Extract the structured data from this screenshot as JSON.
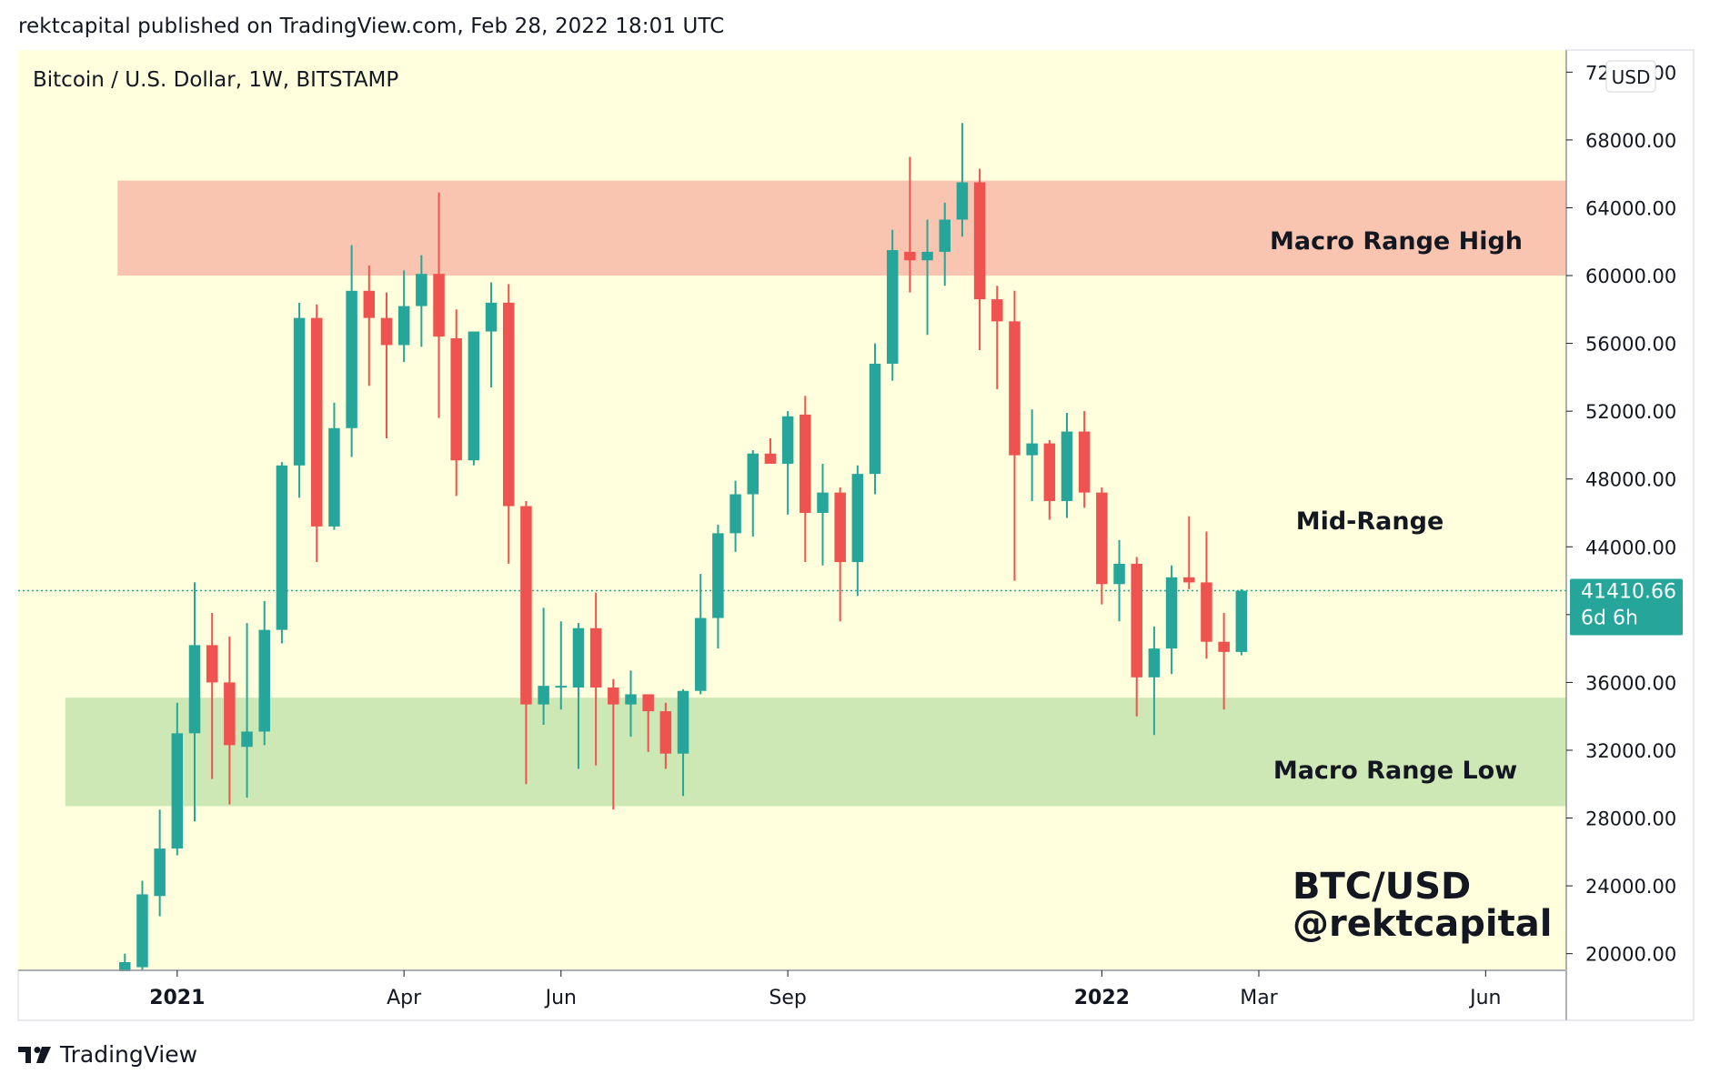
{
  "header": {
    "published_line": "rektcapital published on TradingView.com, Feb 28, 2022 18:01 UTC"
  },
  "footer": {
    "brand": "TradingView"
  },
  "colors": {
    "background": "#ffffdd",
    "bull": "#26a69a",
    "bear": "#ef5350",
    "zone_high": "#fac5b0",
    "zone_low": "#cde8b5",
    "price_label": "#26a69a"
  },
  "chart_data": {
    "type": "candlestick",
    "title": "Bitcoin / U.S. Dollar, 1W, BITSTAMP",
    "currency_badge": "USD",
    "ylim": [
      19500,
      72500
    ],
    "y_ticks": [
      {
        "value": 20000,
        "label": "20000.00"
      },
      {
        "value": 24000,
        "label": "24000.00"
      },
      {
        "value": 28000,
        "label": "28000.00"
      },
      {
        "value": 32000,
        "label": "32000.00"
      },
      {
        "value": 36000,
        "label": "36000.00"
      },
      {
        "value": 40000,
        "label": "40000.00"
      },
      {
        "value": 44000,
        "label": "44000.00"
      },
      {
        "value": 48000,
        "label": "48000.00"
      },
      {
        "value": 52000,
        "label": "52000.00"
      },
      {
        "value": 56000,
        "label": "56000.00"
      },
      {
        "value": 60000,
        "label": "60000.00"
      },
      {
        "value": 64000,
        "label": "64000.00"
      },
      {
        "value": 68000,
        "label": "68000.00"
      },
      {
        "value": 72000,
        "label": "72000.00"
      }
    ],
    "x_ticks": [
      {
        "week": -1,
        "label": "2021",
        "bold": true
      },
      {
        "week": 12,
        "label": "Apr",
        "bold": false
      },
      {
        "week": 21,
        "label": "Jun",
        "bold": false
      },
      {
        "week": 34,
        "label": "Sep",
        "bold": false
      },
      {
        "week": 52,
        "label": "2022",
        "bold": true
      },
      {
        "week": 61,
        "label": "Mar",
        "bold": false
      },
      {
        "week": 74,
        "label": "Jun",
        "bold": false
      }
    ],
    "x_range_weeks": [
      -6,
      79
    ],
    "current_price": {
      "value": 41410.66,
      "label": "41410.66",
      "countdown": "6d 6h"
    },
    "zones": [
      {
        "name": "Macro Range High",
        "low": 60000,
        "high": 65600,
        "start_week": -4
      },
      {
        "name": "Macro Range Low",
        "low": 28700,
        "high": 35100,
        "start_week": -7
      }
    ],
    "annotations": {
      "mid_range": "Mid-Range",
      "zone_high_label": "Macro Range High",
      "zone_low_label": "Macro Range Low",
      "watermark_line1": "BTC/USD",
      "watermark_line2": "@rektcapital"
    },
    "candles": [
      {
        "o": 18800,
        "h": 20000,
        "l": 18500,
        "c": 19500
      },
      {
        "o": 19200,
        "h": 24300,
        "l": 19000,
        "c": 23500
      },
      {
        "o": 23400,
        "h": 28500,
        "l": 22200,
        "c": 26200
      },
      {
        "o": 26200,
        "h": 34800,
        "l": 25800,
        "c": 33000
      },
      {
        "o": 33000,
        "h": 41900,
        "l": 27800,
        "c": 38200
      },
      {
        "o": 38200,
        "h": 40100,
        "l": 30300,
        "c": 36000
      },
      {
        "o": 36000,
        "h": 38700,
        "l": 28800,
        "c": 32300
      },
      {
        "o": 32200,
        "h": 39500,
        "l": 29200,
        "c": 33100
      },
      {
        "o": 33100,
        "h": 40800,
        "l": 32300,
        "c": 39100
      },
      {
        "o": 39100,
        "h": 49000,
        "l": 38300,
        "c": 48800
      },
      {
        "o": 48800,
        "h": 58400,
        "l": 46900,
        "c": 57500
      },
      {
        "o": 57500,
        "h": 58300,
        "l": 43100,
        "c": 45200
      },
      {
        "o": 45200,
        "h": 52500,
        "l": 45000,
        "c": 51000
      },
      {
        "o": 51000,
        "h": 61800,
        "l": 49300,
        "c": 59100
      },
      {
        "o": 59100,
        "h": 60600,
        "l": 53500,
        "c": 57500
      },
      {
        "o": 57500,
        "h": 59000,
        "l": 50400,
        "c": 55900
      },
      {
        "o": 55900,
        "h": 60300,
        "l": 54900,
        "c": 58200
      },
      {
        "o": 58200,
        "h": 61200,
        "l": 55800,
        "c": 60100
      },
      {
        "o": 60100,
        "h": 64900,
        "l": 51600,
        "c": 56400
      },
      {
        "o": 56300,
        "h": 58000,
        "l": 47000,
        "c": 49100
      },
      {
        "o": 49100,
        "h": 56700,
        "l": 48800,
        "c": 56700
      },
      {
        "o": 56700,
        "h": 59600,
        "l": 53400,
        "c": 58400
      },
      {
        "o": 58400,
        "h": 59500,
        "l": 43000,
        "c": 46400
      },
      {
        "o": 46400,
        "h": 46700,
        "l": 30000,
        "c": 34700
      },
      {
        "o": 34700,
        "h": 40400,
        "l": 33500,
        "c": 35800
      },
      {
        "o": 35700,
        "h": 39600,
        "l": 34400,
        "c": 35800
      },
      {
        "o": 35700,
        "h": 39500,
        "l": 30900,
        "c": 39200
      },
      {
        "o": 39200,
        "h": 41300,
        "l": 31100,
        "c": 35700
      },
      {
        "o": 35700,
        "h": 36200,
        "l": 28500,
        "c": 34700
      },
      {
        "o": 34700,
        "h": 36700,
        "l": 32800,
        "c": 35300
      },
      {
        "o": 35300,
        "h": 35300,
        "l": 31900,
        "c": 34300
      },
      {
        "o": 34300,
        "h": 34800,
        "l": 30900,
        "c": 31800
      },
      {
        "o": 31800,
        "h": 35600,
        "l": 29300,
        "c": 35500
      },
      {
        "o": 35500,
        "h": 42400,
        "l": 35300,
        "c": 39800
      },
      {
        "o": 39800,
        "h": 45300,
        "l": 38000,
        "c": 44800
      },
      {
        "o": 44800,
        "h": 47900,
        "l": 43700,
        "c": 47100
      },
      {
        "o": 47100,
        "h": 49700,
        "l": 44600,
        "c": 49500
      },
      {
        "o": 49500,
        "h": 50400,
        "l": 48900,
        "c": 48900
      },
      {
        "o": 48900,
        "h": 52000,
        "l": 45900,
        "c": 51700
      },
      {
        "o": 51800,
        "h": 52900,
        "l": 43100,
        "c": 46000
      },
      {
        "o": 46000,
        "h": 48900,
        "l": 42900,
        "c": 47200
      },
      {
        "o": 47200,
        "h": 47500,
        "l": 39600,
        "c": 43100
      },
      {
        "o": 43100,
        "h": 48800,
        "l": 41100,
        "c": 48300
      },
      {
        "o": 48300,
        "h": 56000,
        "l": 47100,
        "c": 54800
      },
      {
        "o": 54800,
        "h": 62700,
        "l": 53800,
        "c": 61500
      },
      {
        "o": 61400,
        "h": 67000,
        "l": 59000,
        "c": 60900
      },
      {
        "o": 60900,
        "h": 63300,
        "l": 56500,
        "c": 61400
      },
      {
        "o": 61400,
        "h": 64300,
        "l": 59400,
        "c": 63300
      },
      {
        "o": 63300,
        "h": 69000,
        "l": 62300,
        "c": 65500
      },
      {
        "o": 65500,
        "h": 66300,
        "l": 55600,
        "c": 58600
      },
      {
        "o": 58600,
        "h": 59400,
        "l": 53300,
        "c": 57300
      },
      {
        "o": 57300,
        "h": 59100,
        "l": 42000,
        "c": 49400
      },
      {
        "o": 49400,
        "h": 52100,
        "l": 46700,
        "c": 50100
      },
      {
        "o": 50100,
        "h": 50300,
        "l": 45600,
        "c": 46700
      },
      {
        "o": 46700,
        "h": 51900,
        "l": 45700,
        "c": 50800
      },
      {
        "o": 50800,
        "h": 52000,
        "l": 46300,
        "c": 47200
      },
      {
        "o": 47200,
        "h": 47500,
        "l": 40600,
        "c": 41800
      },
      {
        "o": 41800,
        "h": 44400,
        "l": 39600,
        "c": 43000
      },
      {
        "o": 43000,
        "h": 43400,
        "l": 34000,
        "c": 36300
      },
      {
        "o": 36300,
        "h": 39300,
        "l": 32900,
        "c": 38000
      },
      {
        "o": 38000,
        "h": 42900,
        "l": 36500,
        "c": 42200
      },
      {
        "o": 42200,
        "h": 45800,
        "l": 41500,
        "c": 41900
      },
      {
        "o": 41900,
        "h": 44900,
        "l": 37400,
        "c": 38400
      },
      {
        "o": 38400,
        "h": 40100,
        "l": 34400,
        "c": 37800
      },
      {
        "o": 37800,
        "h": 41500,
        "l": 37600,
        "c": 41410
      }
    ],
    "first_candle_week": -4
  }
}
